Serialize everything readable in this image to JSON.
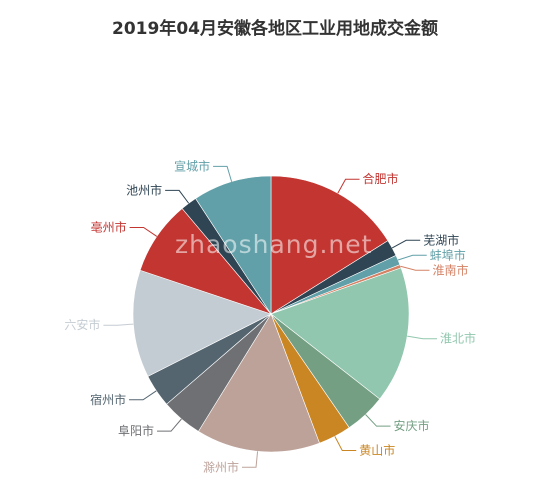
{
  "chart_data": {
    "type": "pie",
    "title": "2019年04月安徽各地区工业用地成交金额",
    "slices": [
      {
        "label": "合肥市",
        "value": 16.6,
        "color": "#c23531"
      },
      {
        "label": "芜湖市",
        "value": 2.0,
        "color": "#2f4554"
      },
      {
        "label": "蚌埠市",
        "value": 1.2,
        "color": "#61a0a8"
      },
      {
        "label": "淮南市",
        "value": 0.4,
        "color": "#d48265"
      },
      {
        "label": "淮北市",
        "value": 16.5,
        "color": "#91c7ae"
      },
      {
        "label": "安庆市",
        "value": 5.0,
        "color": "#749f83"
      },
      {
        "label": "黄山市",
        "value": 4.0,
        "color": "#ca8622"
      },
      {
        "label": "滁州市",
        "value": 15.0,
        "color": "#bda29a"
      },
      {
        "label": "阜阳市",
        "value": 5.0,
        "color": "#6e7074"
      },
      {
        "label": "宿州市",
        "value": 4.0,
        "color": "#546570"
      },
      {
        "label": "六安市",
        "value": 13.0,
        "color": "#c4ccd3"
      },
      {
        "label": "亳州市",
        "value": 9.0,
        "color": "#c23531"
      },
      {
        "label": "池州市",
        "value": 2.0,
        "color": "#2f4554"
      },
      {
        "label": "宣城市",
        "value": 9.5,
        "color": "#61a0a8"
      }
    ]
  },
  "watermark": "zhaoshang.net"
}
